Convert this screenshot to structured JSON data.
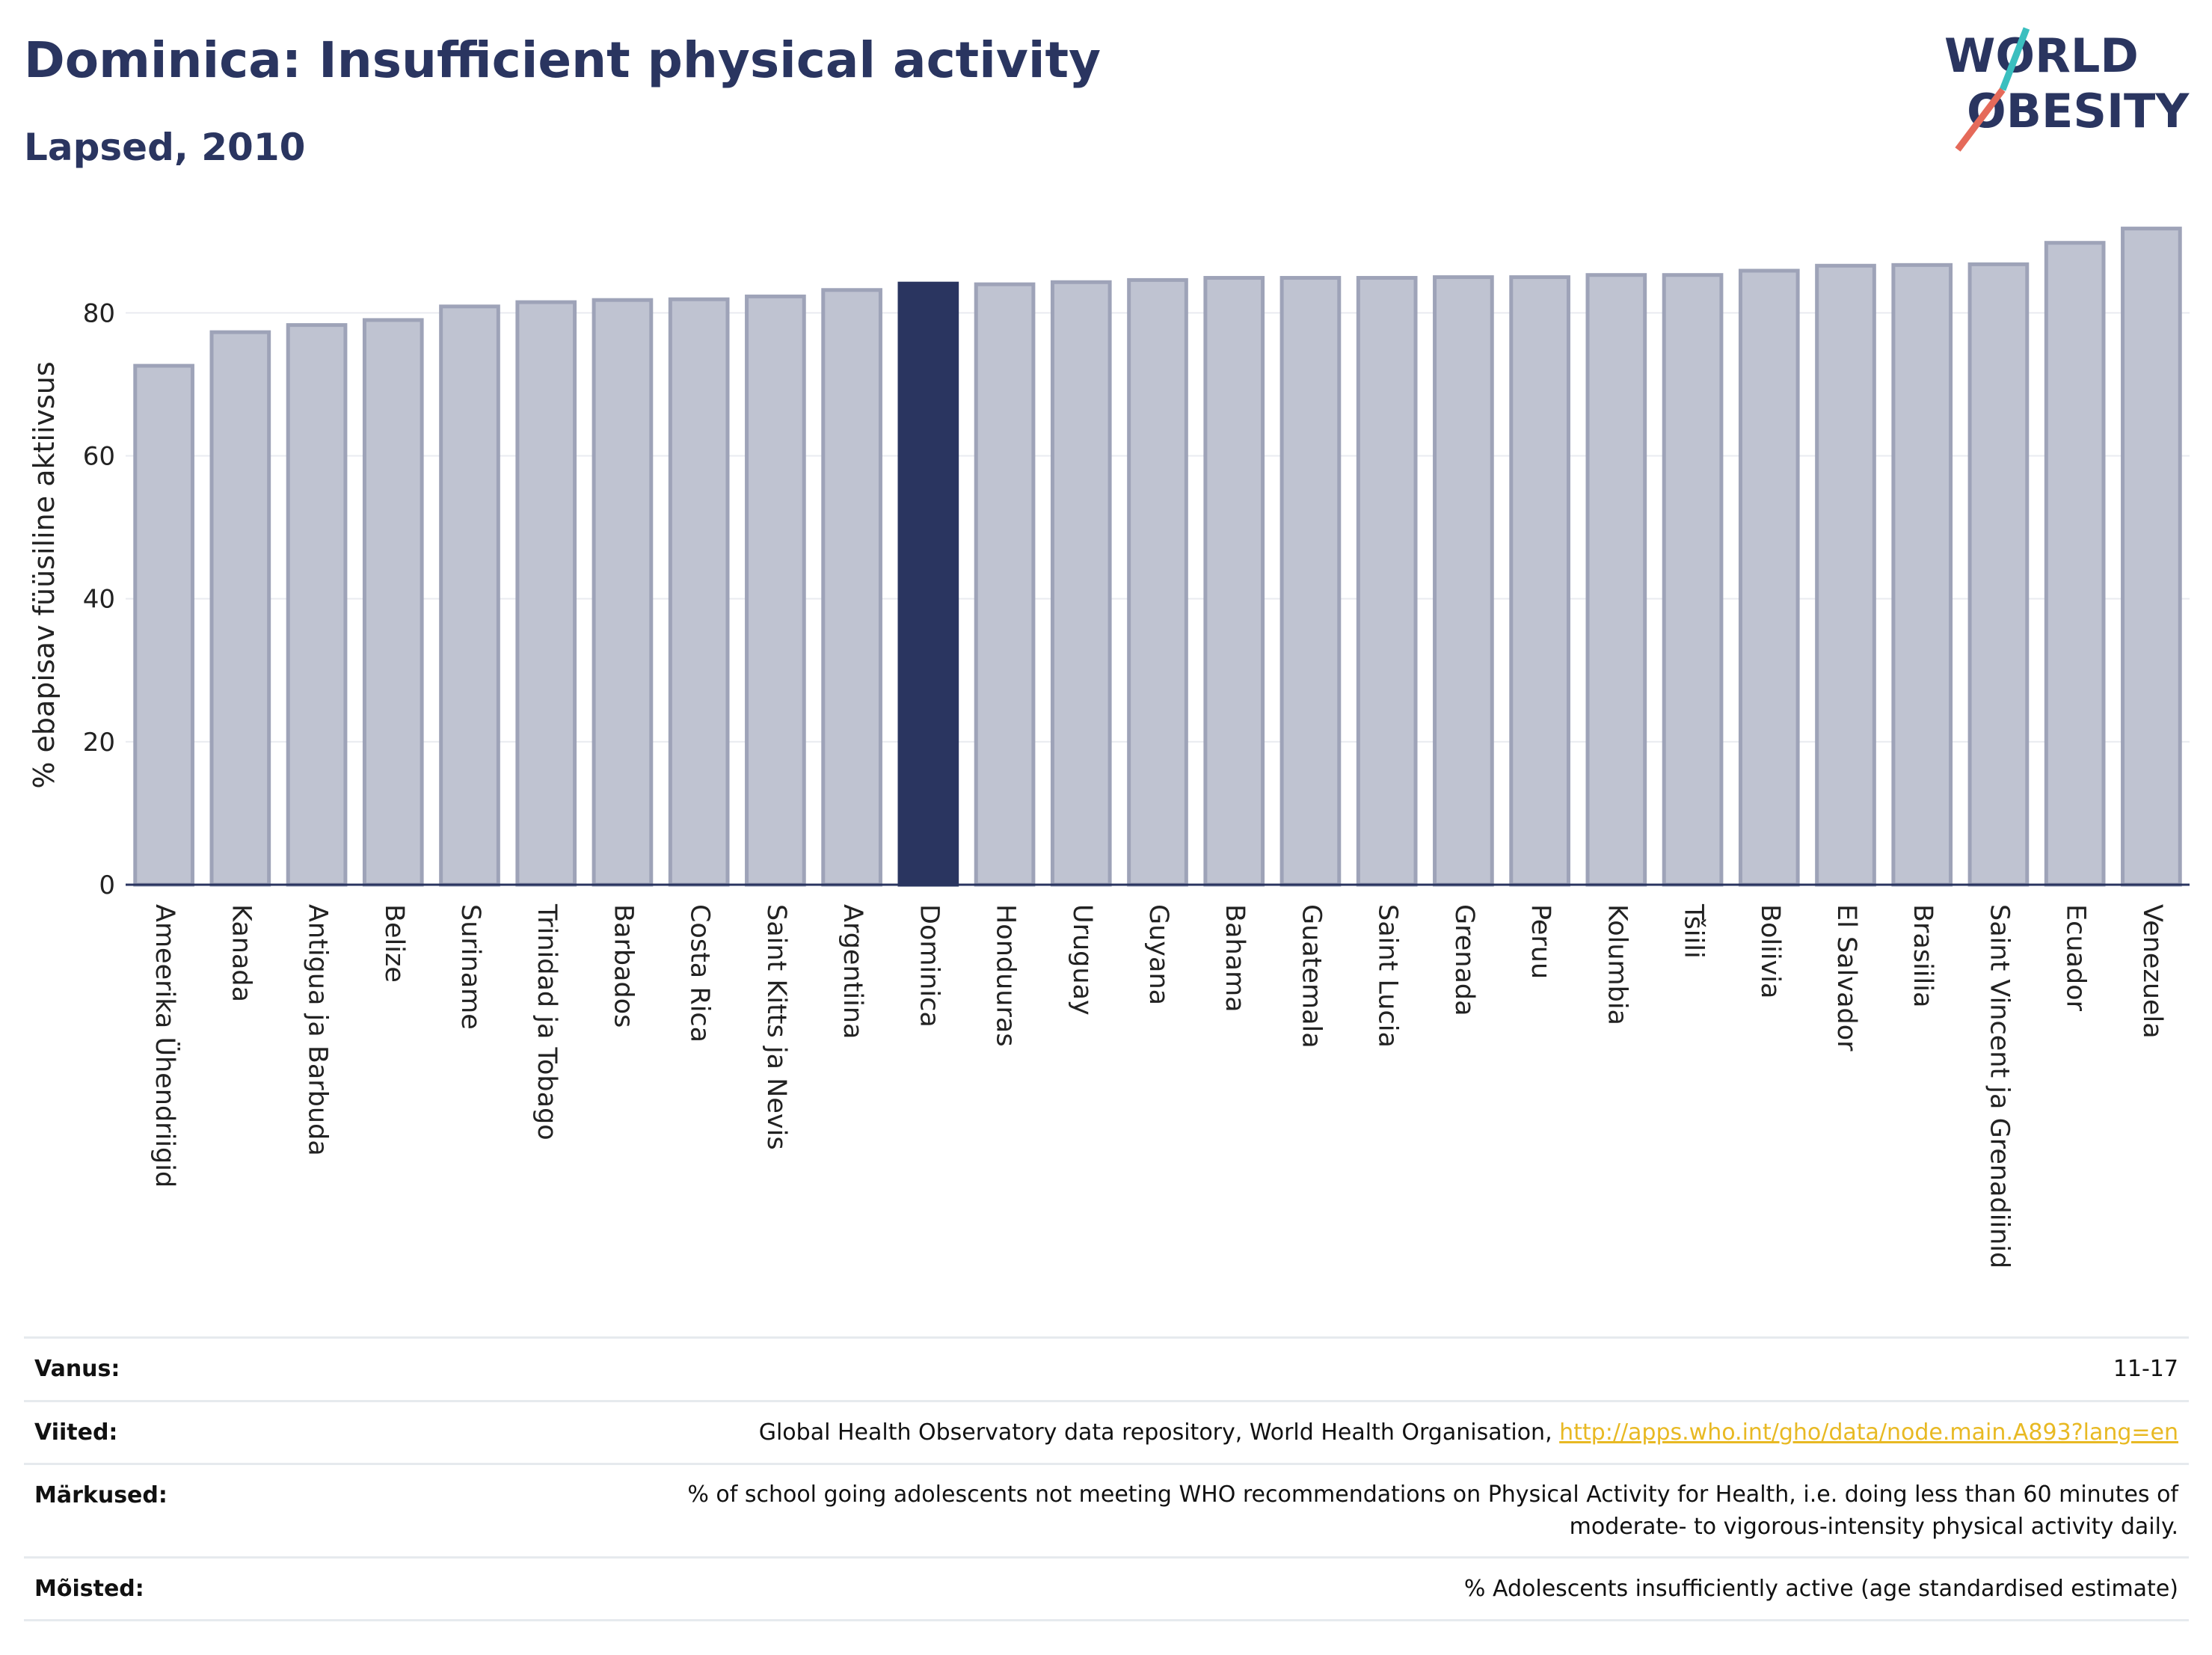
{
  "header": {
    "title": "Dominica: Insufficient physical activity",
    "subtitle": "Lapsed, 2010"
  },
  "logo": {
    "line1": "WORLD",
    "line2": "OBESITY"
  },
  "chart_data": {
    "type": "bar",
    "ylabel": "% ebapisav füüsiline aktiivsus",
    "xlabel": "",
    "ylim": [
      0,
      95
    ],
    "yticks": [
      0,
      20,
      40,
      60,
      80
    ],
    "grid": true,
    "highlight": "Dominica",
    "colors": {
      "bar": "#bfc3d1",
      "bar_edge": "#9ea3b8",
      "highlight": "#2a3560"
    },
    "categories": [
      "Ameerika Ühendriigid",
      "Kanada",
      "Antigua ja Barbuda",
      "Belize",
      "Suriname",
      "Trinidad ja Tobago",
      "Barbados",
      "Costa Rica",
      "Saint Kitts ja Nevis",
      "Argentiina",
      "Dominica",
      "Honduuras",
      "Uruguay",
      "Guyana",
      "Bahama",
      "Guatemala",
      "Saint Lucia",
      "Grenada",
      "Peruu",
      "Kolumbia",
      "Tšiili",
      "Boliivia",
      "El Salvador",
      "Brasiilia",
      "Saint Vincent ja Grenadiinid",
      "Ecuador",
      "Venezuela"
    ],
    "values": [
      72.6,
      77.3,
      78.3,
      79.0,
      80.9,
      81.5,
      81.8,
      81.9,
      82.3,
      83.2,
      84.1,
      84.0,
      84.3,
      84.6,
      84.9,
      84.9,
      84.9,
      85.0,
      85.0,
      85.3,
      85.3,
      85.9,
      86.6,
      86.7,
      86.8,
      89.8,
      91.8
    ]
  },
  "table": [
    {
      "key": "Vanus:",
      "value": "11-17"
    },
    {
      "key": "Viited:",
      "value": "Global Health Observatory data repository, World Health Organisation, ",
      "link": "http://apps.who.int/gho/data/node.main.A893?lang=en"
    },
    {
      "key": "Märkused:",
      "value": "% of school going adolescents not meeting WHO recommendations on Physical Activity for Health, i.e. doing less than 60 minutes of moderate- to vigorous-intensity physical activity daily."
    },
    {
      "key": "Mõisted:",
      "value": "% Adolescents insufficiently active (age standardised estimate)"
    }
  ]
}
